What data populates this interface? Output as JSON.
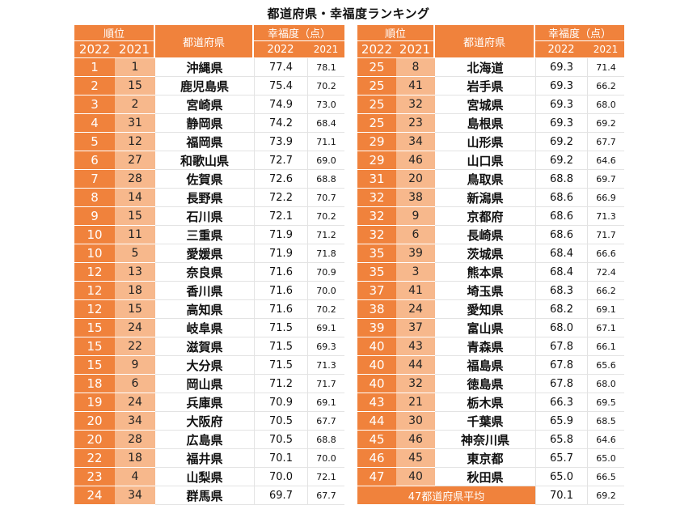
{
  "title": "都道府県・幸福度ランキング",
  "header": {
    "rank": "順位",
    "year_2022": "2022",
    "year_2021": "2021",
    "prefecture": "都道府県",
    "score": "幸福度（点）",
    "score_2022": "2022",
    "score_2021": "2021"
  },
  "rows": [
    {
      "rank2022": "1",
      "rank2021": "1",
      "pref": "沖縄県",
      "score2022": "77.4",
      "score2021": "78.1"
    },
    {
      "rank2022": "2",
      "rank2021": "15",
      "pref": "鹿児島県",
      "score2022": "75.4",
      "score2021": "70.2"
    },
    {
      "rank2022": "3",
      "rank2021": "2",
      "pref": "宮崎県",
      "score2022": "74.9",
      "score2021": "73.0"
    },
    {
      "rank2022": "4",
      "rank2021": "31",
      "pref": "静岡県",
      "score2022": "74.2",
      "score2021": "68.4"
    },
    {
      "rank2022": "5",
      "rank2021": "12",
      "pref": "福岡県",
      "score2022": "73.9",
      "score2021": "71.1"
    },
    {
      "rank2022": "6",
      "rank2021": "27",
      "pref": "和歌山県",
      "score2022": "72.7",
      "score2021": "69.0"
    },
    {
      "rank2022": "7",
      "rank2021": "28",
      "pref": "佐賀県",
      "score2022": "72.6",
      "score2021": "68.8"
    },
    {
      "rank2022": "8",
      "rank2021": "14",
      "pref": "長野県",
      "score2022": "72.2",
      "score2021": "70.7"
    },
    {
      "rank2022": "9",
      "rank2021": "15",
      "pref": "石川県",
      "score2022": "72.1",
      "score2021": "70.2"
    },
    {
      "rank2022": "10",
      "rank2021": "11",
      "pref": "三重県",
      "score2022": "71.9",
      "score2021": "71.2"
    },
    {
      "rank2022": "10",
      "rank2021": "5",
      "pref": "愛媛県",
      "score2022": "71.9",
      "score2021": "71.8"
    },
    {
      "rank2022": "12",
      "rank2021": "13",
      "pref": "奈良県",
      "score2022": "71.6",
      "score2021": "70.9"
    },
    {
      "rank2022": "12",
      "rank2021": "18",
      "pref": "香川県",
      "score2022": "71.6",
      "score2021": "70.0"
    },
    {
      "rank2022": "12",
      "rank2021": "15",
      "pref": "高知県",
      "score2022": "71.6",
      "score2021": "70.2"
    },
    {
      "rank2022": "15",
      "rank2021": "24",
      "pref": "岐阜県",
      "score2022": "71.5",
      "score2021": "69.1"
    },
    {
      "rank2022": "15",
      "rank2021": "22",
      "pref": "滋賀県",
      "score2022": "71.5",
      "score2021": "69.3"
    },
    {
      "rank2022": "15",
      "rank2021": "9",
      "pref": "大分県",
      "score2022": "71.5",
      "score2021": "71.3"
    },
    {
      "rank2022": "18",
      "rank2021": "6",
      "pref": "岡山県",
      "score2022": "71.2",
      "score2021": "71.7"
    },
    {
      "rank2022": "19",
      "rank2021": "24",
      "pref": "兵庫県",
      "score2022": "70.9",
      "score2021": "69.1"
    },
    {
      "rank2022": "20",
      "rank2021": "34",
      "pref": "大阪府",
      "score2022": "70.5",
      "score2021": "67.7"
    },
    {
      "rank2022": "20",
      "rank2021": "28",
      "pref": "広島県",
      "score2022": "70.5",
      "score2021": "68.8"
    },
    {
      "rank2022": "22",
      "rank2021": "18",
      "pref": "福井県",
      "score2022": "70.1",
      "score2021": "70.0"
    },
    {
      "rank2022": "23",
      "rank2021": "4",
      "pref": "山梨県",
      "score2022": "70.0",
      "score2021": "72.1"
    },
    {
      "rank2022": "24",
      "rank2021": "34",
      "pref": "群馬県",
      "score2022": "69.7",
      "score2021": "67.7"
    },
    {
      "rank2022": "25",
      "rank2021": "8",
      "pref": "北海道",
      "score2022": "69.3",
      "score2021": "71.4"
    },
    {
      "rank2022": "25",
      "rank2021": "41",
      "pref": "岩手県",
      "score2022": "69.3",
      "score2021": "66.2"
    },
    {
      "rank2022": "25",
      "rank2021": "32",
      "pref": "宮城県",
      "score2022": "69.3",
      "score2021": "68.0"
    },
    {
      "rank2022": "25",
      "rank2021": "23",
      "pref": "島根県",
      "score2022": "69.3",
      "score2021": "69.2"
    },
    {
      "rank2022": "29",
      "rank2021": "34",
      "pref": "山形県",
      "score2022": "69.2",
      "score2021": "67.7"
    },
    {
      "rank2022": "29",
      "rank2021": "46",
      "pref": "山口県",
      "score2022": "69.2",
      "score2021": "64.6"
    },
    {
      "rank2022": "31",
      "rank2021": "20",
      "pref": "鳥取県",
      "score2022": "68.8",
      "score2021": "69.7"
    },
    {
      "rank2022": "32",
      "rank2021": "38",
      "pref": "新潟県",
      "score2022": "68.6",
      "score2021": "66.9"
    },
    {
      "rank2022": "32",
      "rank2021": "9",
      "pref": "京都府",
      "score2022": "68.6",
      "score2021": "71.3"
    },
    {
      "rank2022": "32",
      "rank2021": "6",
      "pref": "長崎県",
      "score2022": "68.6",
      "score2021": "71.7"
    },
    {
      "rank2022": "35",
      "rank2021": "39",
      "pref": "茨城県",
      "score2022": "68.4",
      "score2021": "66.6"
    },
    {
      "rank2022": "35",
      "rank2021": "3",
      "pref": "熊本県",
      "score2022": "68.4",
      "score2021": "72.4"
    },
    {
      "rank2022": "37",
      "rank2021": "41",
      "pref": "埼玉県",
      "score2022": "68.3",
      "score2021": "66.2"
    },
    {
      "rank2022": "38",
      "rank2021": "24",
      "pref": "愛知県",
      "score2022": "68.2",
      "score2021": "69.1"
    },
    {
      "rank2022": "39",
      "rank2021": "37",
      "pref": "富山県",
      "score2022": "68.0",
      "score2021": "67.1"
    },
    {
      "rank2022": "40",
      "rank2021": "43",
      "pref": "青森県",
      "score2022": "67.8",
      "score2021": "66.1"
    },
    {
      "rank2022": "40",
      "rank2021": "44",
      "pref": "福島県",
      "score2022": "67.8",
      "score2021": "65.6"
    },
    {
      "rank2022": "40",
      "rank2021": "32",
      "pref": "徳島県",
      "score2022": "67.8",
      "score2021": "68.0"
    },
    {
      "rank2022": "43",
      "rank2021": "21",
      "pref": "栃木県",
      "score2022": "66.3",
      "score2021": "69.5"
    },
    {
      "rank2022": "44",
      "rank2021": "30",
      "pref": "千葉県",
      "score2022": "65.9",
      "score2021": "68.5"
    },
    {
      "rank2022": "45",
      "rank2021": "46",
      "pref": "神奈川県",
      "score2022": "65.8",
      "score2021": "64.6"
    },
    {
      "rank2022": "46",
      "rank2021": "45",
      "pref": "東京都",
      "score2022": "65.7",
      "score2021": "65.0"
    },
    {
      "rank2022": "47",
      "rank2021": "40",
      "pref": "秋田県",
      "score2022": "65.0",
      "score2021": "66.5"
    }
  ],
  "average": {
    "label": "47都道府県平均",
    "score2022": "70.1",
    "score2021": "69.2"
  }
}
